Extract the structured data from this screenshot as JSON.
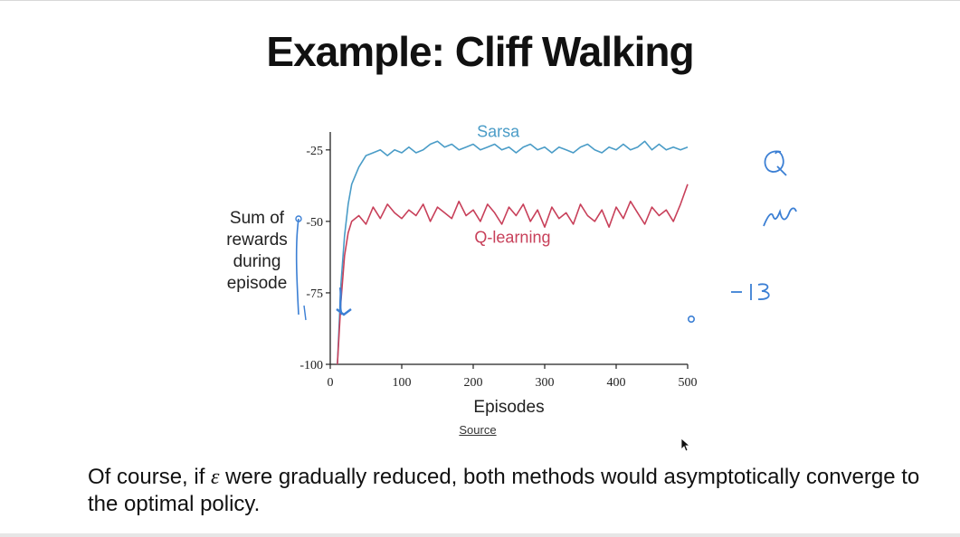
{
  "slide": {
    "title": "Example: Cliff Walking",
    "source_label": "Source",
    "caption_part1": "Of course, if ",
    "caption_symbol": "ε",
    "caption_part2": " were gradually reduced, both methods would asymptotically converge to the optimal policy."
  },
  "chart_data": {
    "type": "line",
    "title": "",
    "xlabel": "Episodes",
    "ylabel_lines": [
      "Sum of",
      "rewards",
      "during",
      "episode"
    ],
    "xlim": [
      0,
      500
    ],
    "ylim": [
      -100,
      -20
    ],
    "xticks": [
      0,
      100,
      200,
      300,
      400,
      500
    ],
    "yticks": [
      -25,
      -50,
      -75,
      -100
    ],
    "series": [
      {
        "name": "Sarsa",
        "color": "#4a9cc7",
        "x": [
          10,
          15,
          20,
          25,
          30,
          40,
          50,
          60,
          70,
          80,
          90,
          100,
          110,
          120,
          130,
          140,
          150,
          160,
          170,
          180,
          190,
          200,
          210,
          220,
          230,
          240,
          250,
          260,
          270,
          280,
          290,
          300,
          310,
          320,
          330,
          340,
          350,
          360,
          370,
          380,
          390,
          400,
          410,
          420,
          430,
          440,
          450,
          460,
          470,
          480,
          490,
          500
        ],
        "y": [
          -100,
          -72,
          -55,
          -44,
          -37,
          -31,
          -27,
          -26,
          -25,
          -27,
          -25,
          -26,
          -24,
          -26,
          -25,
          -23,
          -22,
          -24,
          -23,
          -25,
          -24,
          -23,
          -25,
          -24,
          -23,
          -25,
          -24,
          -26,
          -24,
          -23,
          -25,
          -24,
          -26,
          -24,
          -25,
          -26,
          -24,
          -23,
          -25,
          -26,
          -24,
          -25,
          -23,
          -25,
          -24,
          -22,
          -25,
          -23,
          -25,
          -24,
          -25,
          -24
        ]
      },
      {
        "name": "Q-learning",
        "color": "#c8405a",
        "x": [
          10,
          15,
          20,
          25,
          30,
          40,
          50,
          60,
          70,
          80,
          90,
          100,
          110,
          120,
          130,
          140,
          150,
          160,
          170,
          180,
          190,
          200,
          210,
          220,
          230,
          240,
          250,
          260,
          270,
          280,
          290,
          300,
          310,
          320,
          330,
          340,
          350,
          360,
          370,
          380,
          390,
          400,
          410,
          420,
          430,
          440,
          450,
          460,
          470,
          480,
          490,
          500
        ],
        "y": [
          -100,
          -78,
          -62,
          -54,
          -50,
          -48,
          -51,
          -45,
          -49,
          -44,
          -47,
          -49,
          -46,
          -48,
          -44,
          -50,
          -45,
          -47,
          -49,
          -43,
          -48,
          -46,
          -50,
          -44,
          -47,
          -51,
          -45,
          -48,
          -44,
          -50,
          -46,
          -52,
          -45,
          -49,
          -47,
          -51,
          -44,
          -48,
          -50,
          -46,
          -52,
          -45,
          -49,
          -43,
          -47,
          -51,
          -45,
          -48,
          -46,
          -50,
          -44,
          -37
        ]
      }
    ]
  },
  "annotations": {
    "handwritten_minus_13": "−13"
  }
}
